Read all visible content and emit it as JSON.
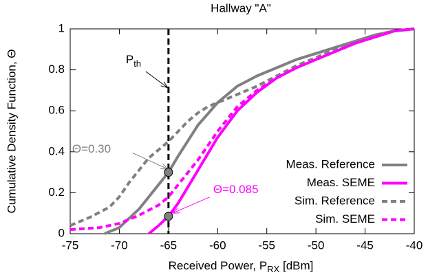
{
  "chart_data": {
    "type": "line",
    "title": "Hallway \"A\"",
    "xlabel": {
      "text": "Received Power, P",
      "sub": "RX",
      "suffix": " [dBm]"
    },
    "ylabel": "Cumulative Density Function, Θ",
    "xlim": [
      -75,
      -40
    ],
    "xticks": [
      -75,
      -70,
      -65,
      -60,
      -55,
      -50,
      -45,
      -40
    ],
    "ylim": [
      0,
      1
    ],
    "yticks": [
      0,
      0.2,
      0.4,
      0.6,
      0.8,
      1
    ],
    "grid": false,
    "legend": "lower right",
    "threshold": {
      "x": -65,
      "base": "P",
      "sub": "th"
    },
    "annotations": [
      {
        "label": "Θ=0.30",
        "x": -65,
        "y": 0.3,
        "color": "#808080"
      },
      {
        "label": "Θ=0.085",
        "x": -65,
        "y": 0.085,
        "color": "#ff00ff"
      }
    ],
    "series": [
      {
        "name": "Meas. Reference",
        "color": "#808080",
        "dash": false,
        "x": [
          -71.5,
          -70,
          -68,
          -66,
          -65,
          -64,
          -62,
          -60,
          -58,
          -56,
          -54,
          -52,
          -50,
          -48,
          -46,
          -44,
          -42,
          -40
        ],
        "values": [
          0,
          0.03,
          0.12,
          0.24,
          0.3,
          0.38,
          0.53,
          0.64,
          0.72,
          0.77,
          0.81,
          0.85,
          0.88,
          0.91,
          0.94,
          0.97,
          0.99,
          1.0
        ]
      },
      {
        "name": "Meas. SEME",
        "color": "#ff00ff",
        "dash": false,
        "x": [
          -67,
          -66,
          -65,
          -64,
          -63,
          -62,
          -60,
          -58,
          -56,
          -54,
          -52,
          -50,
          -48,
          -46,
          -44,
          -42,
          -40
        ],
        "values": [
          0,
          0.04,
          0.085,
          0.15,
          0.23,
          0.31,
          0.47,
          0.6,
          0.69,
          0.76,
          0.81,
          0.85,
          0.89,
          0.93,
          0.96,
          0.99,
          1.0
        ]
      },
      {
        "name": "Sim. Reference",
        "color": "#808080",
        "dash": true,
        "x": [
          -75,
          -73,
          -71,
          -70,
          -69,
          -68,
          -67,
          -66,
          -65,
          -64,
          -63,
          -62,
          -61,
          -60,
          -58,
          -56,
          -54,
          -52,
          -50,
          -48,
          -46,
          -44,
          -42,
          -40
        ],
        "values": [
          0.04,
          0.08,
          0.13,
          0.18,
          0.25,
          0.31,
          0.37,
          0.41,
          0.45,
          0.5,
          0.55,
          0.59,
          0.62,
          0.64,
          0.68,
          0.72,
          0.77,
          0.82,
          0.86,
          0.9,
          0.94,
          0.97,
          0.99,
          1.0
        ]
      },
      {
        "name": "Sim. SEME",
        "color": "#ff00ff",
        "dash": true,
        "x": [
          -75,
          -72,
          -70,
          -68,
          -66,
          -65,
          -64,
          -63,
          -62,
          -60,
          -58,
          -56,
          -54,
          -52,
          -50,
          -48,
          -46,
          -44,
          -42,
          -40
        ],
        "values": [
          0.02,
          0.03,
          0.05,
          0.09,
          0.14,
          0.18,
          0.24,
          0.3,
          0.36,
          0.5,
          0.62,
          0.7,
          0.76,
          0.81,
          0.85,
          0.89,
          0.93,
          0.96,
          0.99,
          1.0
        ]
      }
    ]
  }
}
